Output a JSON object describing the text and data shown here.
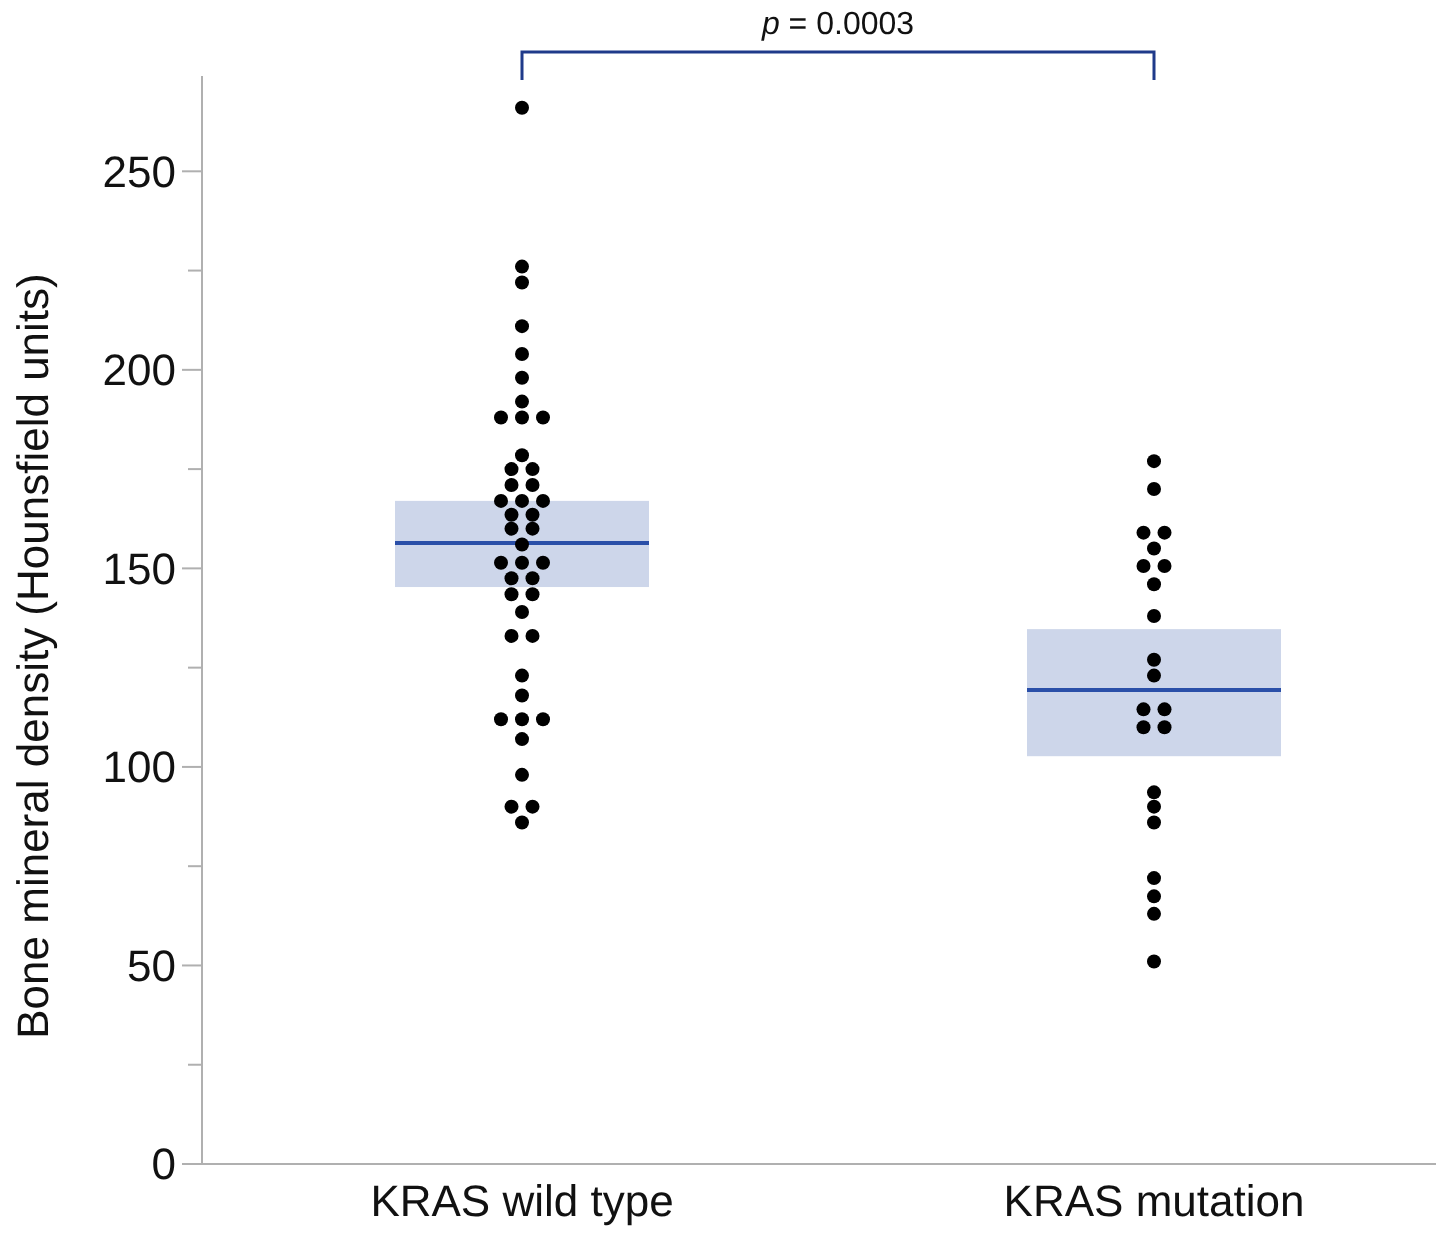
{
  "chart_data": {
    "type": "box",
    "ylabel": "Bone mineral density (Hounsfield units)",
    "categories": [
      "KRAS wild type",
      "KRAS mutation"
    ],
    "color": "#cdd6ea",
    "boxes": [
      {
        "q1": 145.3,
        "median": 156.4,
        "q3": 167
      },
      {
        "q1": 102.7,
        "median": 119.4,
        "q3": 134.7
      }
    ],
    "ylim": [
      0,
      274
    ],
    "yticks": [
      0,
      {
        "value": 25,
        "label": null
      },
      50,
      {
        "value": 75,
        "label": null
      },
      100,
      {
        "value": 125,
        "label": null
      },
      150,
      {
        "value": 175,
        "label": null
      },
      200,
      {
        "value": 225,
        "label": null
      },
      250
    ],
    "grid": false,
    "annotations": [
      "p = 0.0003"
    ],
    "series": [
      {
        "type": "scatter",
        "color": "#000000",
        "marker": "circle",
        "x": [
          "KRAS wild type",
          "KRAS wild type",
          "KRAS wild type",
          "KRAS wild type",
          "KRAS wild type",
          "KRAS wild type",
          "KRAS wild type",
          "KRAS wild type",
          "KRAS wild type",
          "KRAS wild type",
          "KRAS wild type",
          "KRAS wild type",
          "KRAS wild type",
          "KRAS wild type",
          "KRAS wild type",
          "KRAS wild type",
          "KRAS wild type",
          "KRAS wild type",
          "KRAS wild type",
          "KRAS wild type",
          "KRAS wild type",
          "KRAS wild type",
          "KRAS wild type",
          "KRAS wild type",
          "KRAS wild type",
          "KRAS wild type",
          "KRAS wild type",
          "KRAS wild type",
          "KRAS wild type",
          "KRAS wild type",
          "KRAS wild type",
          "KRAS wild type",
          "KRAS wild type",
          "KRAS wild type",
          "KRAS wild type",
          "KRAS wild type",
          "KRAS wild type",
          "KRAS wild type",
          "KRAS wild type",
          "KRAS wild type",
          "KRAS wild type",
          "KRAS wild type",
          "KRAS wild type",
          "KRAS mutation",
          "KRAS mutation",
          "KRAS mutation",
          "KRAS mutation",
          "KRAS mutation",
          "KRAS mutation",
          "KRAS mutation",
          "KRAS mutation",
          "KRAS mutation",
          "KRAS mutation",
          "KRAS mutation",
          "KRAS mutation",
          "KRAS mutation",
          "KRAS mutation",
          "KRAS mutation",
          "KRAS mutation",
          "KRAS mutation",
          "KRAS mutation",
          "KRAS mutation",
          "KRAS mutation",
          "KRAS mutation",
          "KRAS mutation"
        ],
        "values": [
          266,
          226,
          222,
          211,
          204,
          198,
          192,
          188,
          188,
          188,
          178.5,
          175,
          175,
          171,
          171,
          167,
          167,
          167,
          163.5,
          163.5,
          160,
          160,
          156,
          151.4,
          151.4,
          151.4,
          147.5,
          147.5,
          143.5,
          143.5,
          139,
          133,
          133,
          123,
          118,
          112,
          112,
          112,
          107,
          98,
          90,
          90,
          86,
          177,
          170,
          159,
          159,
          155,
          150.6,
          150.6,
          146,
          138,
          127,
          123,
          114.5,
          114.5,
          110,
          110,
          93.6,
          90,
          86,
          72,
          67.4,
          63,
          51
        ]
      }
    ]
  }
}
